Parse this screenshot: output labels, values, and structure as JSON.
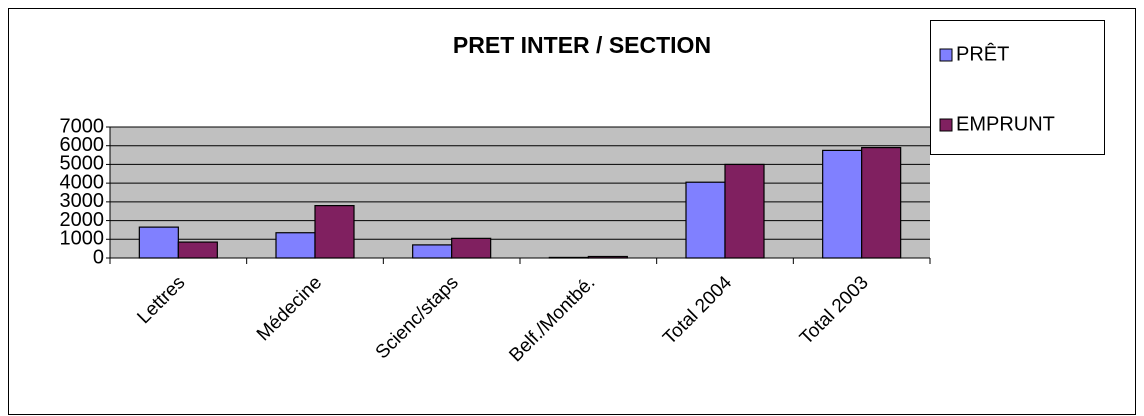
{
  "chart_data": {
    "type": "bar",
    "title": "PRET INTER / SECTION",
    "categories": [
      "Lettres",
      "Médecine",
      "Scienc/staps",
      "Belf./Montbé.",
      "Total 2004",
      "Total 2003"
    ],
    "series": [
      {
        "name": "PRÊT",
        "color": "#8080ff",
        "values": [
          1650,
          1350,
          700,
          30,
          4050,
          5750
        ]
      },
      {
        "name": "EMPRUNT",
        "color": "#802060",
        "values": [
          850,
          2800,
          1050,
          80,
          5000,
          5900
        ]
      }
    ],
    "ylim": [
      0,
      7000
    ],
    "yticks": [
      0,
      1000,
      2000,
      3000,
      4000,
      5000,
      6000,
      7000
    ],
    "grid": true,
    "legend": "right"
  }
}
